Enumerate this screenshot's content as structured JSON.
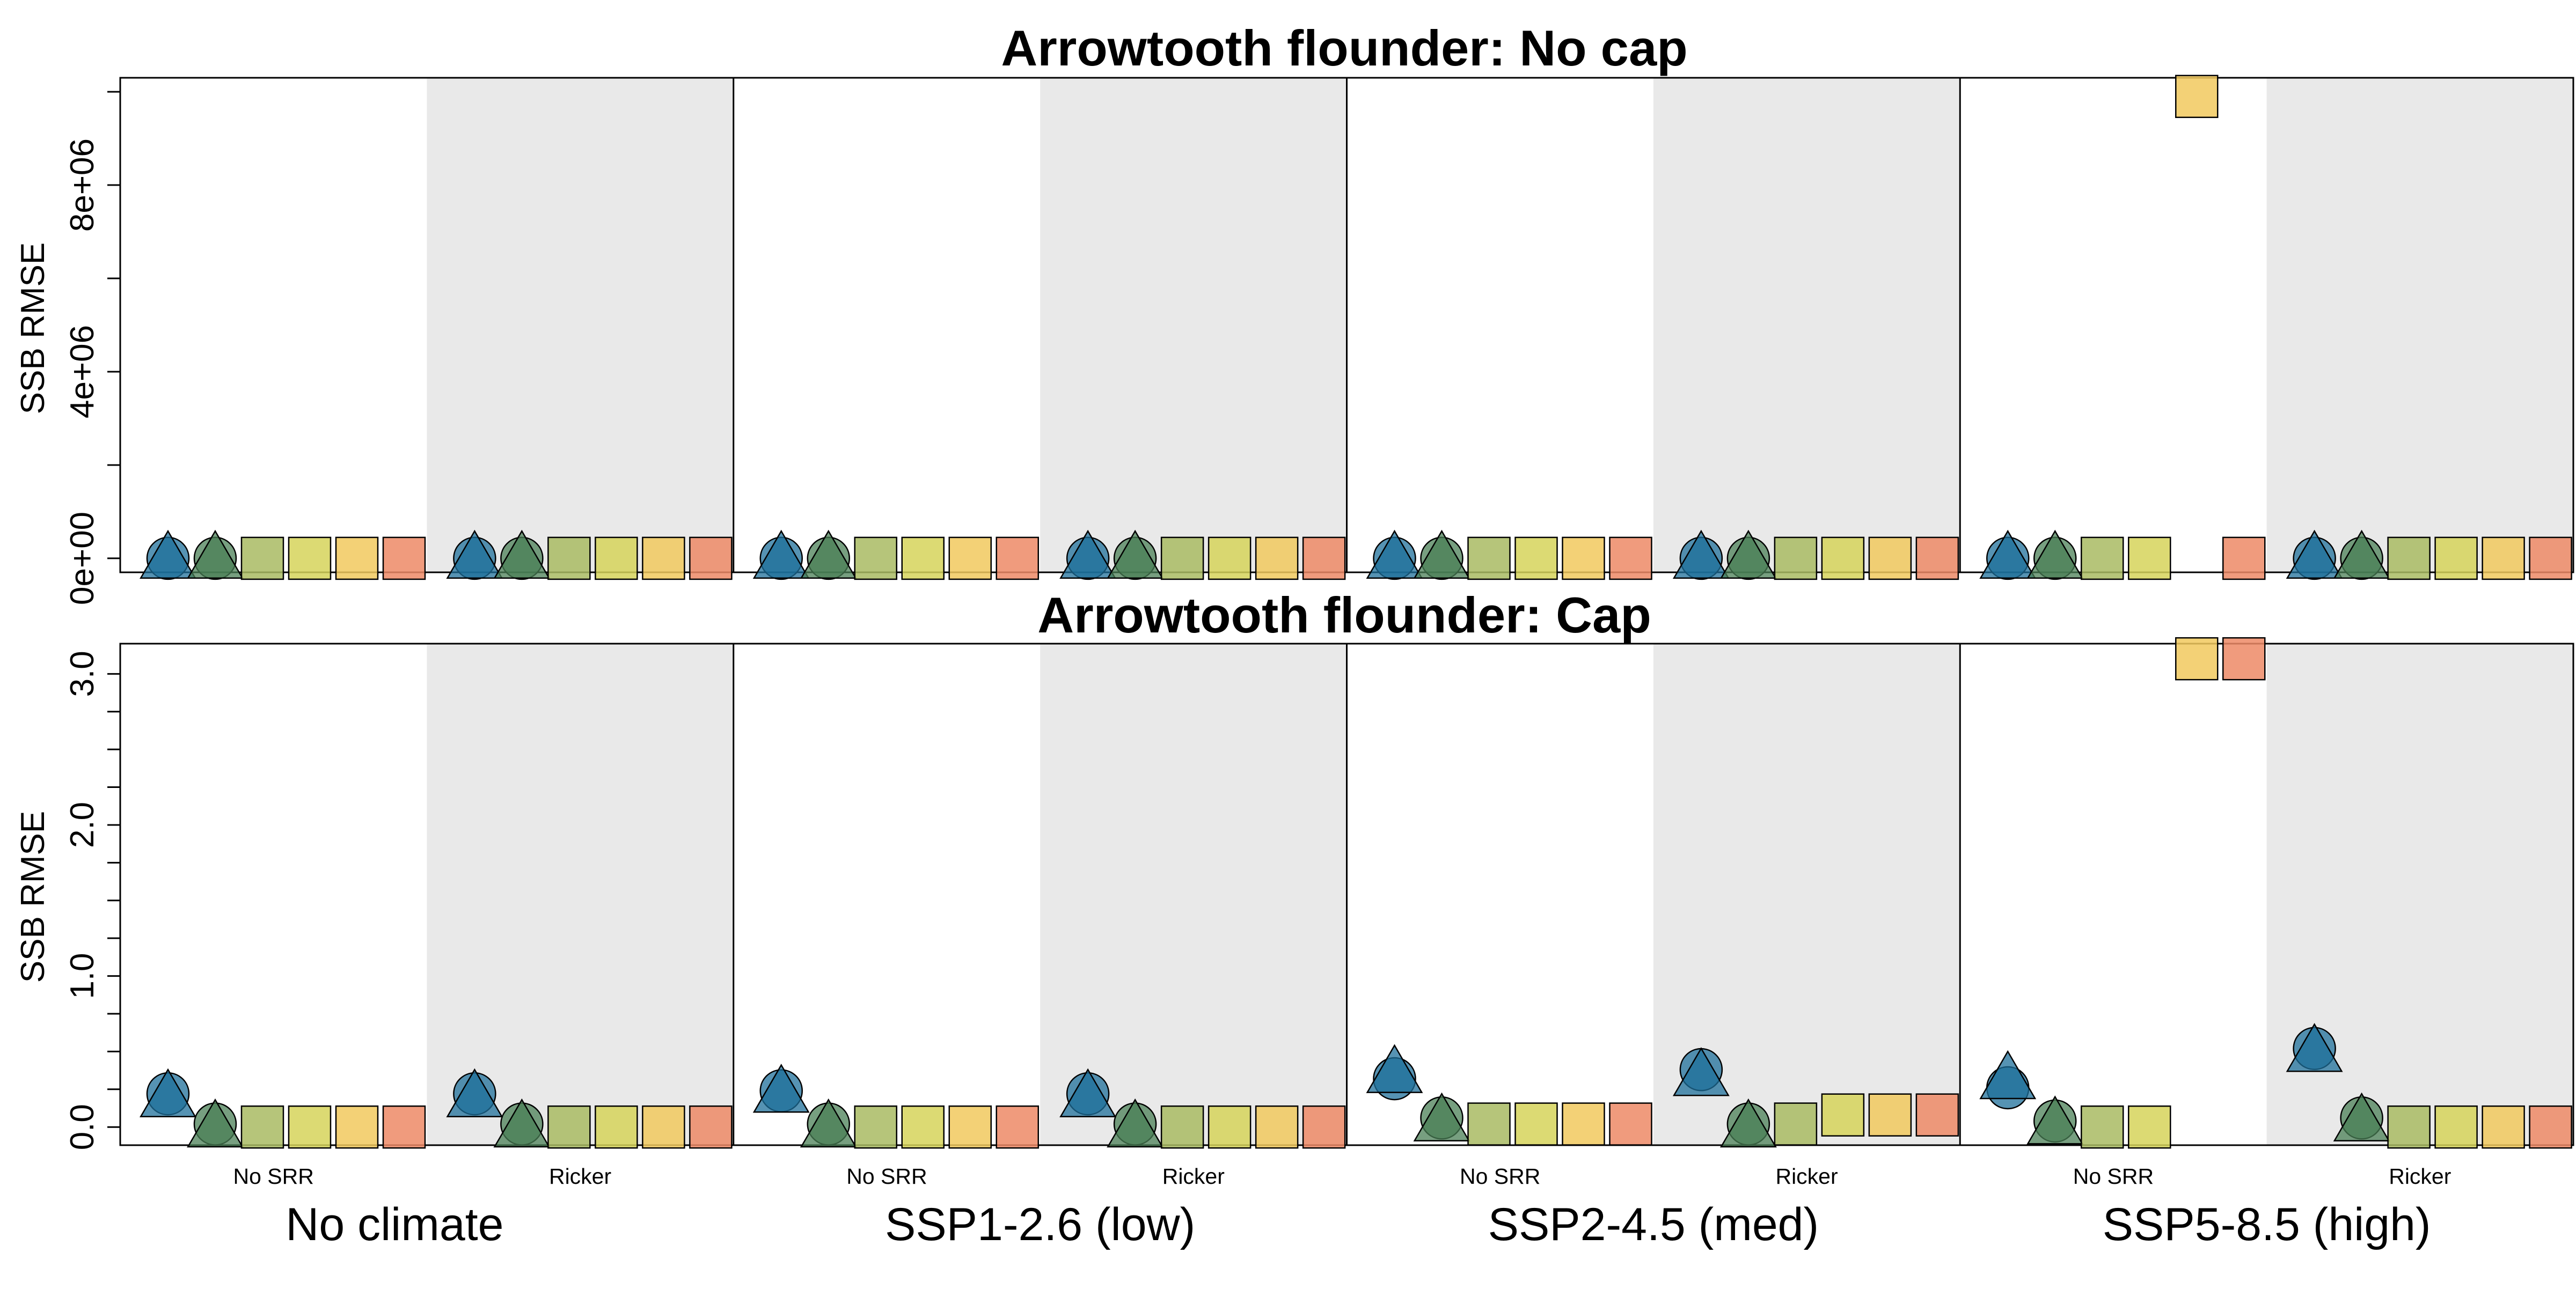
{
  "panels": [
    {
      "title": "Arrowtooth flounder: No cap",
      "ylabel": "SSB RMSE"
    },
    {
      "title": "Arrowtooth flounder: Cap",
      "ylabel": "SSB RMSE"
    }
  ],
  "x_axis": {
    "climate_labels": [
      "No climate",
      "SSP1-2.6 (low)",
      "SSP2-4.5 (med)",
      "SSP5-8.5 (high)"
    ],
    "srr_labels": [
      "No SRR",
      "Ricker"
    ]
  },
  "colors": {
    "m1": "#1e6f9a",
    "m2": "#4a7f55",
    "m3": "#a9bb63",
    "m4": "#d6d45a",
    "m5": "#f1c95e",
    "m6": "#ed8a66",
    "shade": "#e9e9e9"
  },
  "marker_shapes": [
    "circle+triangle",
    "circle+triangle",
    "square",
    "square",
    "square",
    "square"
  ],
  "chart_data": [
    {
      "type": "scatter",
      "title": "Arrowtooth flounder: No cap",
      "ylabel": "SSB RMSE",
      "ylim": [
        -300000,
        10300000
      ],
      "yticks": [
        0,
        4000000,
        8000000
      ],
      "ytick_labels": [
        "0e+00",
        "4e+06",
        "8e+06"
      ],
      "minor_yticks": [
        2000000,
        6000000,
        10000000
      ],
      "groups": [
        "No climate / No SRR",
        "No climate / Ricker",
        "SSP1-2.6 (low) / No SRR",
        "SSP1-2.6 (low) / Ricker",
        "SSP2-4.5 (med) / No SRR",
        "SSP2-4.5 (med) / Ricker",
        "SSP5-8.5 (high) / No SRR",
        "SSP5-8.5 (high) / Ricker"
      ],
      "series": [
        {
          "marker": "circle",
          "values": [
            [
              0,
              0
            ],
            [
              0,
              0
            ],
            [
              0,
              0
            ],
            [
              0,
              0
            ],
            [
              0,
              0
            ],
            [
              0,
              0
            ],
            [
              0,
              0
            ],
            [
              0,
              0
            ]
          ]
        },
        {
          "marker": "circle",
          "values": [
            [
              0,
              0
            ],
            [
              0,
              0
            ],
            [
              0,
              0
            ],
            [
              0,
              0
            ],
            [
              0,
              0
            ],
            [
              0,
              0
            ],
            [
              0,
              0
            ],
            [
              0,
              0
            ]
          ]
        },
        {
          "marker": "square",
          "values": [
            0,
            0,
            0,
            0,
            0,
            0,
            0,
            0
          ]
        },
        {
          "marker": "square",
          "values": [
            0,
            0,
            0,
            0,
            0,
            0,
            0,
            0
          ]
        },
        {
          "marker": "square",
          "values": [
            0,
            0,
            0,
            0,
            0,
            0,
            9900000,
            0
          ]
        },
        {
          "marker": "square",
          "values": [
            0,
            0,
            0,
            0,
            0,
            0,
            0,
            0
          ]
        }
      ]
    },
    {
      "type": "scatter",
      "title": "Arrowtooth flounder: Cap",
      "ylabel": "SSB RMSE",
      "ylim": [
        -0.12,
        3.2
      ],
      "yticks": [
        0,
        1,
        2,
        3
      ],
      "ytick_labels": [
        "0.0",
        "1.0",
        "2.0",
        "3.0"
      ],
      "minor_yticks": [
        0.25,
        0.5,
        0.75,
        1.25,
        1.5,
        1.75,
        2.25,
        2.5,
        2.75
      ],
      "groups": [
        "No climate / No SRR",
        "No climate / Ricker",
        "SSP1-2.6 (low) / No SRR",
        "SSP1-2.6 (low) / Ricker",
        "SSP2-4.5 (med) / No SRR",
        "SSP2-4.5 (med) / Ricker",
        "SSP5-8.5 (high) / No SRR",
        "SSP5-8.5 (high) / Ricker"
      ],
      "series": [
        {
          "marker": "circle+triangle",
          "values": [
            [
              0.22,
              0.2
            ],
            [
              0.22,
              0.2
            ],
            [
              0.24,
              0.23
            ],
            [
              0.22,
              0.2
            ],
            [
              0.32,
              0.36
            ],
            [
              0.38,
              0.34
            ],
            [
              0.26,
              0.32
            ],
            [
              0.52,
              0.5
            ]
          ]
        },
        {
          "marker": "circle+triangle",
          "values": [
            [
              0.02,
              0.0
            ],
            [
              0.02,
              0.0
            ],
            [
              0.02,
              0.0
            ],
            [
              0.02,
              0.0
            ],
            [
              0.06,
              0.04
            ],
            [
              0.02,
              0.0
            ],
            [
              0.04,
              0.02
            ],
            [
              0.06,
              0.04
            ]
          ]
        },
        {
          "marker": "square",
          "values": [
            0.0,
            0.0,
            0.0,
            0.0,
            0.02,
            0.02,
            0.0,
            0.0
          ]
        },
        {
          "marker": "square",
          "values": [
            0.0,
            0.0,
            0.0,
            0.0,
            0.02,
            0.08,
            0.0,
            0.0
          ]
        },
        {
          "marker": "square",
          "values": [
            0.0,
            0.0,
            0.0,
            0.0,
            0.02,
            0.08,
            3.1,
            0.0
          ]
        },
        {
          "marker": "square",
          "values": [
            0.0,
            0.0,
            0.0,
            0.0,
            0.02,
            0.08,
            3.1,
            0.0
          ]
        }
      ]
    }
  ]
}
